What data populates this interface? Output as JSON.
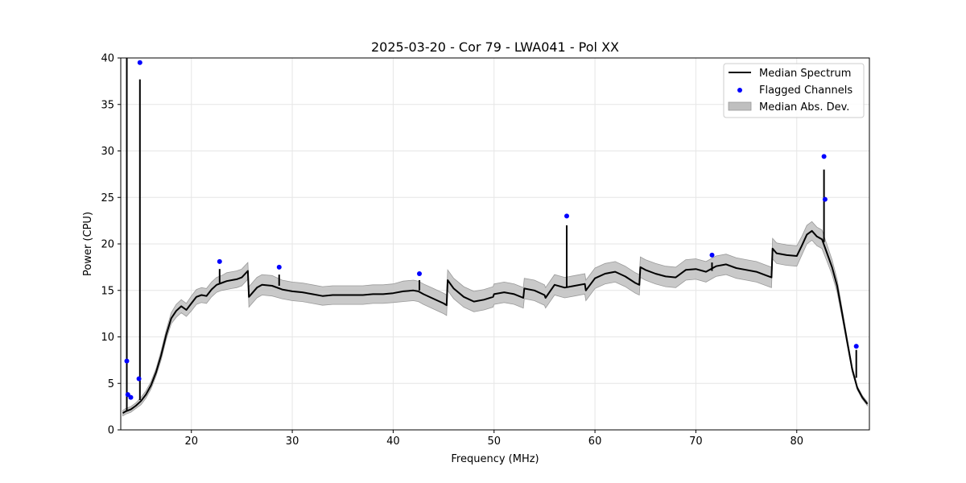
{
  "chart_data": {
    "type": "line",
    "title": "2025-03-20 - Cor 79 - LWA041 - Pol XX",
    "xlabel": "Frequency (MHz)",
    "ylabel": "Power (CPU)",
    "xlim": [
      13.0,
      87.2
    ],
    "ylim": [
      0,
      40
    ],
    "xticks": [
      20,
      30,
      40,
      50,
      60,
      70,
      80
    ],
    "yticks": [
      0,
      5,
      10,
      15,
      20,
      25,
      30,
      35,
      40
    ],
    "grid": true,
    "legend_position": "top-right",
    "legend": [
      "Median Spectrum",
      "Flagged Channels",
      "Median Abs. Dev."
    ],
    "colors": {
      "median": "#000000",
      "flagged": "#0000ff",
      "mad_band": "#bfbfbf",
      "grid": "#e6e6e6"
    },
    "series": [
      {
        "name": "Median Spectrum",
        "type": "line",
        "x": [
          13.2,
          13.5,
          14.0,
          14.5,
          15.0,
          15.5,
          16.0,
          16.5,
          17.0,
          17.5,
          18.0,
          18.5,
          19.0,
          19.5,
          20.0,
          20.5,
          21.0,
          21.5,
          22.0,
          22.5,
          23.0,
          23.5,
          24.0,
          24.5,
          25.0,
          25.6,
          25.7,
          26.5,
          27.0,
          28.0,
          29.0,
          30.0,
          31.0,
          32.0,
          33.0,
          34.0,
          35.0,
          36.0,
          37.0,
          38.0,
          39.0,
          40.0,
          41.0,
          42.0,
          42.5,
          43.0,
          44.0,
          45.0,
          45.3,
          45.4,
          46.0,
          47.0,
          48.0,
          49.0,
          49.9,
          50.0,
          51.0,
          52.0,
          52.9,
          53.0,
          54.0,
          55.0,
          55.1,
          56.0,
          57.0,
          58.0,
          59.0,
          59.1,
          60.0,
          61.0,
          62.0,
          63.0,
          64.0,
          64.4,
          64.5,
          65.0,
          66.0,
          67.0,
          68.0,
          69.0,
          70.0,
          71.0,
          72.0,
          73.0,
          74.0,
          75.0,
          76.0,
          77.0,
          77.5,
          77.6,
          78.0,
          79.0,
          80.0,
          80.5,
          81.0,
          81.5,
          82.0,
          82.5,
          83.0,
          83.5,
          84.0,
          84.5,
          85.0,
          85.5,
          86.0,
          86.5,
          87.0
        ],
        "y": [
          1.8,
          2.0,
          2.2,
          2.6,
          3.1,
          3.8,
          4.8,
          6.2,
          8.0,
          10.2,
          12.0,
          12.8,
          13.3,
          12.9,
          13.6,
          14.3,
          14.5,
          14.4,
          15.1,
          15.6,
          15.8,
          16.0,
          16.1,
          16.2,
          16.4,
          17.1,
          14.3,
          15.3,
          15.6,
          15.5,
          15.1,
          14.9,
          14.8,
          14.6,
          14.4,
          14.5,
          14.5,
          14.5,
          14.5,
          14.6,
          14.6,
          14.7,
          14.9,
          15.0,
          14.9,
          14.6,
          14.1,
          13.6,
          13.4,
          16.1,
          15.2,
          14.3,
          13.8,
          14.0,
          14.3,
          14.6,
          14.8,
          14.6,
          14.2,
          15.2,
          15.0,
          14.5,
          14.2,
          15.6,
          15.3,
          15.5,
          15.7,
          15.0,
          16.3,
          16.8,
          17.0,
          16.5,
          15.8,
          15.6,
          17.5,
          17.2,
          16.8,
          16.5,
          16.4,
          17.2,
          17.3,
          17.0,
          17.6,
          17.8,
          17.4,
          17.2,
          17.0,
          16.6,
          16.4,
          19.5,
          19.0,
          18.8,
          18.7,
          19.8,
          21.0,
          21.4,
          20.8,
          20.5,
          19.0,
          17.5,
          15.5,
          12.5,
          9.5,
          6.5,
          4.5,
          3.5,
          2.8
        ],
        "mad": [
          0.3,
          0.3,
          0.3,
          0.3,
          0.4,
          0.4,
          0.4,
          0.4,
          0.5,
          0.5,
          0.6,
          0.7,
          0.7,
          0.7,
          0.8,
          0.8,
          0.8,
          0.8,
          0.8,
          0.8,
          0.8,
          0.9,
          0.9,
          0.9,
          0.9,
          0.9,
          1.1,
          1.1,
          1.1,
          1.1,
          1.0,
          1.0,
          1.0,
          1.0,
          1.0,
          1.0,
          1.0,
          1.0,
          1.0,
          1.0,
          1.0,
          1.0,
          1.1,
          1.1,
          1.1,
          1.1,
          1.1,
          1.1,
          1.1,
          1.1,
          1.1,
          1.1,
          1.1,
          1.1,
          1.1,
          1.1,
          1.1,
          1.1,
          1.1,
          1.1,
          1.1,
          1.1,
          1.1,
          1.1,
          1.1,
          1.1,
          1.1,
          1.1,
          1.1,
          1.1,
          1.1,
          1.1,
          1.1,
          1.1,
          1.1,
          1.1,
          1.1,
          1.1,
          1.1,
          1.1,
          1.1,
          1.1,
          1.1,
          1.1,
          1.1,
          1.1,
          1.1,
          1.1,
          1.1,
          1.1,
          1.1,
          1.1,
          1.1,
          1.0,
          1.0,
          1.0,
          1.0,
          1.0,
          0.9,
          0.8,
          0.7,
          0.5,
          0.4,
          0.3,
          0.2,
          0.2,
          0.2
        ]
      },
      {
        "name": "Flagged Channels",
        "type": "scatter",
        "x": [
          13.6,
          13.7,
          14.0,
          14.8,
          14.9,
          22.8,
          28.7,
          42.6,
          57.2,
          71.6,
          82.7,
          82.8,
          85.9
        ],
        "y": [
          7.4,
          3.8,
          3.5,
          5.5,
          39.5,
          18.1,
          17.5,
          16.8,
          23.0,
          18.8,
          29.4,
          24.8,
          9.0
        ]
      }
    ],
    "spikes": [
      {
        "x": 13.6,
        "base": 2.0,
        "top": 40.0
      },
      {
        "x": 14.9,
        "base": 3.2,
        "top": 37.7
      },
      {
        "x": 22.8,
        "base": 15.8,
        "top": 17.3
      },
      {
        "x": 28.7,
        "base": 15.5,
        "top": 16.7
      },
      {
        "x": 42.6,
        "base": 15.0,
        "top": 16.1
      },
      {
        "x": 57.2,
        "base": 15.3,
        "top": 22.0
      },
      {
        "x": 71.6,
        "base": 17.1,
        "top": 18.0
      },
      {
        "x": 82.7,
        "base": 20.2,
        "top": 28.0
      },
      {
        "x": 85.9,
        "base": 5.6,
        "top": 8.6
      }
    ]
  }
}
